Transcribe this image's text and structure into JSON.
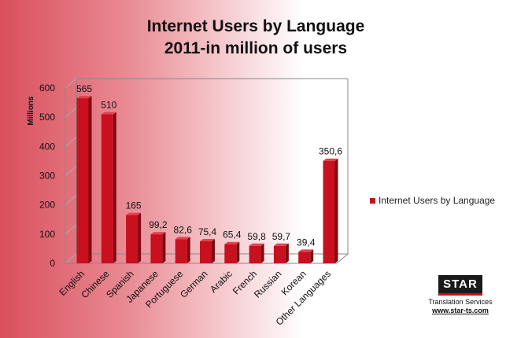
{
  "chart_data": {
    "type": "bar",
    "title": "Internet Users by Language",
    "subtitle": "2011-in million of users",
    "ylabel": "Millions",
    "xlabel": "",
    "ylim": [
      0,
      600
    ],
    "yticks": [
      0,
      100,
      200,
      300,
      400,
      500,
      600
    ],
    "grid": false,
    "legend_position": "right",
    "categories": [
      "English",
      "Chinese",
      "Spanish",
      "Japanese",
      "Portuguese",
      "German",
      "Arabic",
      "French",
      "Russian",
      "Korean",
      "Other Languages"
    ],
    "series": [
      {
        "name": "Internet Users by Language",
        "values": [
          565,
          510,
          165,
          99.2,
          82.6,
          75.4,
          65.4,
          59.8,
          59.7,
          39.4,
          350.6
        ],
        "labels": [
          "565",
          "510",
          "165",
          "99,2",
          "82,6",
          "75,4",
          "65,4",
          "59,8",
          "59,7",
          "39,4",
          "350,6"
        ],
        "color": "#c8101e"
      }
    ]
  },
  "branding": {
    "logo_text": "STAR",
    "subtitle": "Translation Services",
    "url": "www.star-ts.com"
  }
}
